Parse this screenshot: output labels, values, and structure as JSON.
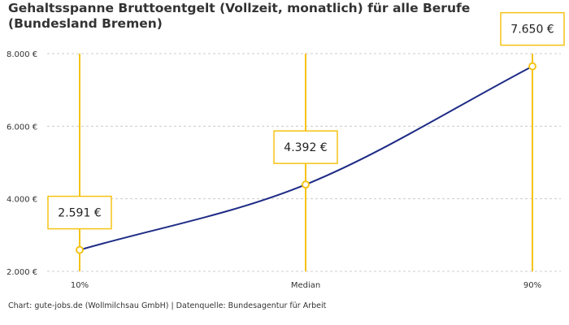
{
  "chart_data": {
    "type": "line",
    "title": "Gehaltsspanne Bruttoentgelt (Vollzeit, monatlich) für alle Berufe (Bundesland Bremen)",
    "categories": [
      "10%",
      "Median",
      "90%"
    ],
    "values": [
      2591,
      4392,
      7650
    ],
    "value_labels": [
      "2.591 €",
      "4.392 €",
      "7.650 €"
    ],
    "yticks": [
      2000,
      4000,
      6000,
      8000
    ],
    "ytick_labels": [
      "2.000 €",
      "4.000 €",
      "6.000 €",
      "8.000 €"
    ],
    "ylim": [
      2000,
      8000
    ],
    "grid": true,
    "colors": {
      "line": "#1f2c86",
      "accent": "#f5c316",
      "grid": "#cccccc"
    }
  },
  "source": "Chart: gute-jobs.de (Wollmilchsau GmbH) | Datenquelle: Bundesagentur für Arbeit"
}
